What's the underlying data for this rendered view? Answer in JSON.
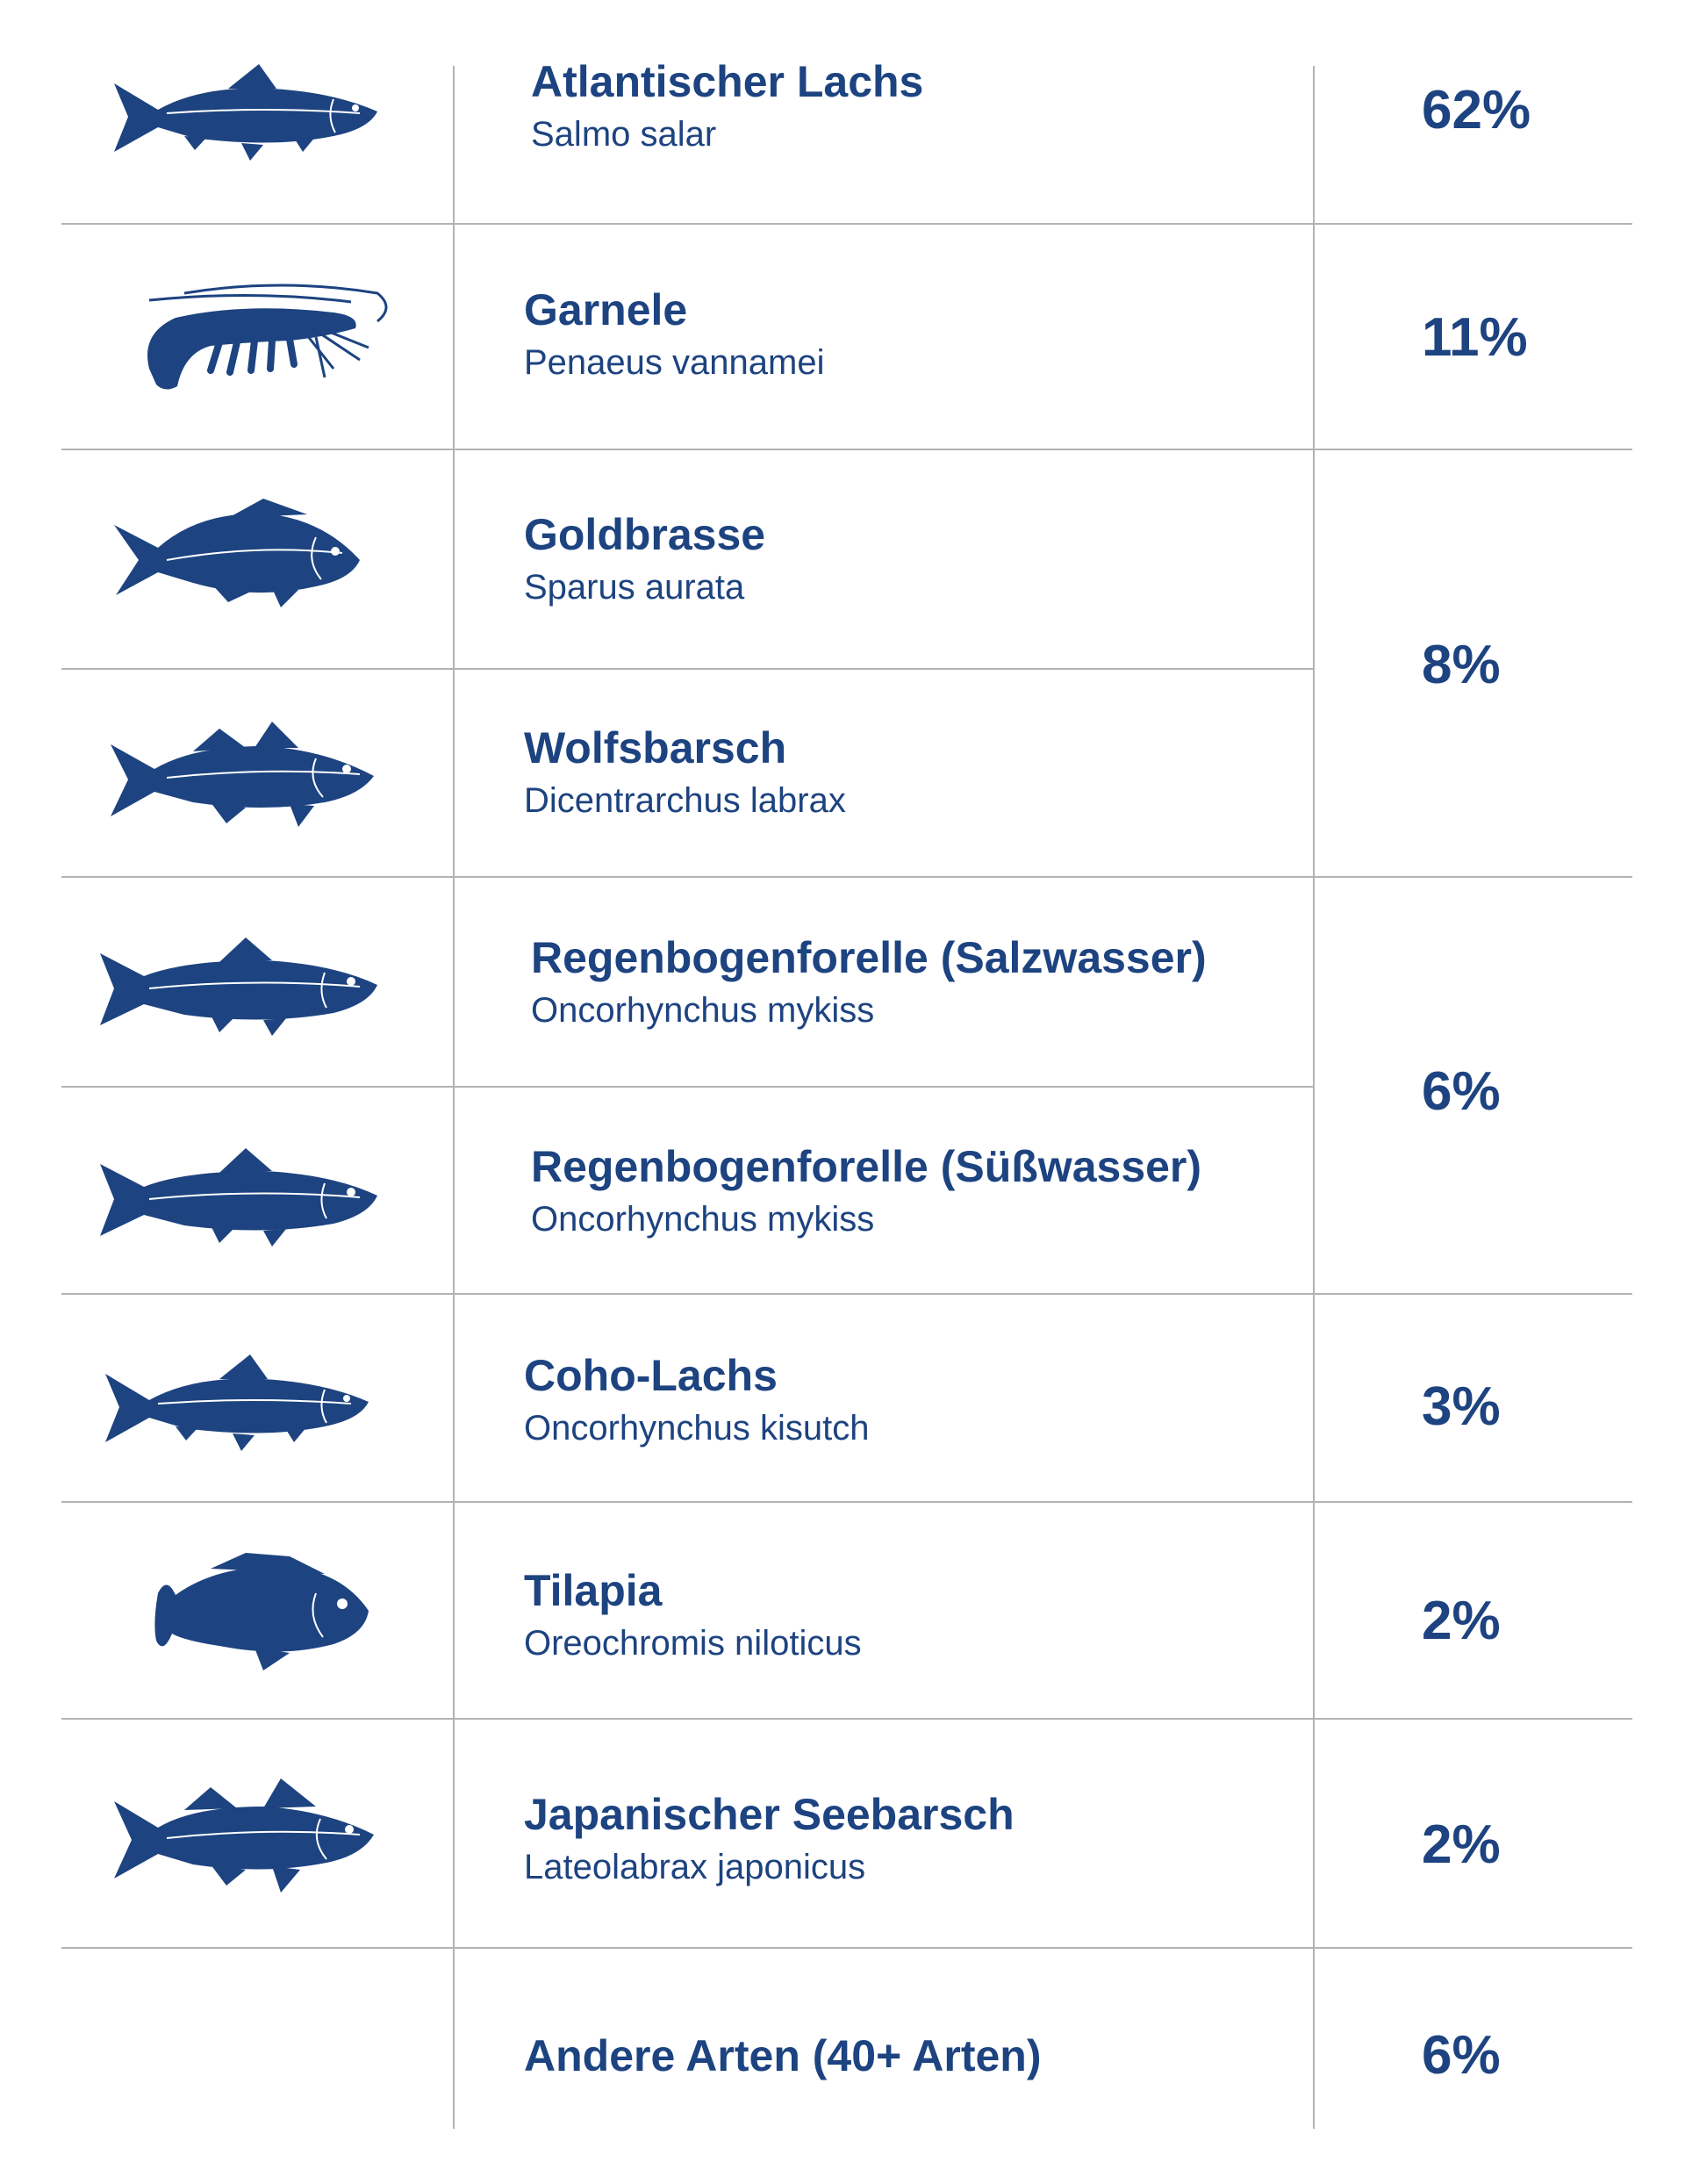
{
  "colors": {
    "text": "#1d4380",
    "icon": "#1d4380",
    "rule": "#b3b3b3"
  },
  "rows": [
    {
      "common": "Atlantischer Lachs",
      "latin": "Salmo salar",
      "icon": "salmon-icon"
    },
    {
      "common": "Garnele",
      "latin": "Penaeus vannamei",
      "icon": "shrimp-icon"
    },
    {
      "common": "Goldbrasse",
      "latin": "Sparus aurata",
      "icon": "sea-bream-icon"
    },
    {
      "common": "Wolfsbarsch",
      "latin": "Dicentrarchus labrax",
      "icon": "sea-bass-icon"
    },
    {
      "common": "Regenbogenforelle (Salzwasser)",
      "latin": "Oncorhynchus mykiss",
      "icon": "rainbow-trout-icon"
    },
    {
      "common": "Regenbogenforelle (Süßwasser)",
      "latin": "Oncorhynchus mykiss",
      "icon": "rainbow-trout-icon"
    },
    {
      "common": "Coho-Lachs",
      "latin": "Oncorhynchus kisutch",
      "icon": "coho-salmon-icon"
    },
    {
      "common": "Tilapia",
      "latin": "Oreochromis niloticus",
      "icon": "tilapia-icon"
    },
    {
      "common": "Japanischer Seebarsch",
      "latin": "Lateolabrax japonicus",
      "icon": "japanese-seabass-icon"
    },
    {
      "common": "Andere Arten (40+ Arten)",
      "latin": ""
    }
  ],
  "shares": [
    "62%",
    "11%",
    "8%",
    "6%",
    "3%",
    "2%",
    "2%",
    "6%"
  ]
}
